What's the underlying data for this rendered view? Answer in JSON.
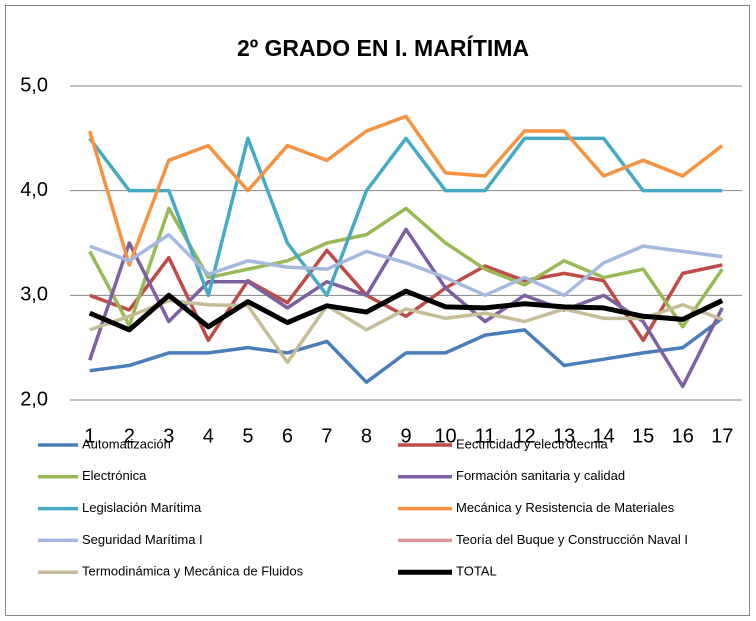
{
  "chart_data": {
    "type": "line",
    "title": "2º GRADO EN I. MARÍTIMA",
    "categories": [
      "1",
      "2",
      "3",
      "4",
      "5",
      "6",
      "7",
      "8",
      "9",
      "10",
      "11",
      "12",
      "13",
      "14",
      "15",
      "16",
      "17"
    ],
    "ylim": [
      2,
      5
    ],
    "yticks": [
      {
        "value": 2,
        "label": "2,0"
      },
      {
        "value": 3,
        "label": "3,0"
      },
      {
        "value": 4,
        "label": "4,0"
      },
      {
        "value": 5,
        "label": "5,0"
      }
    ],
    "grid": true,
    "legend": "bottom",
    "series": [
      {
        "name": "Automatización",
        "color": "#4a7ebb",
        "values": [
          2.28,
          2.33,
          2.45,
          2.45,
          2.5,
          2.45,
          2.56,
          2.17,
          2.45,
          2.45,
          2.62,
          2.67,
          2.33,
          2.39,
          2.45,
          2.5,
          2.78
        ]
      },
      {
        "name": "Eectricidad y electrotecnia",
        "color": "#be4b48",
        "values": [
          3.0,
          2.86,
          3.36,
          2.57,
          3.14,
          2.93,
          3.43,
          3.0,
          2.8,
          3.07,
          3.28,
          3.14,
          3.21,
          3.14,
          2.57,
          3.21,
          3.29
        ]
      },
      {
        "name": "Electrónica",
        "color": "#98b954",
        "values": [
          3.42,
          2.71,
          3.83,
          3.17,
          3.25,
          3.33,
          3.5,
          3.58,
          3.83,
          3.5,
          3.25,
          3.1,
          3.33,
          3.17,
          3.25,
          2.7,
          3.25
        ]
      },
      {
        "name": "Formación sanitaria y calidad",
        "color": "#7d60a0",
        "values": [
          2.38,
          3.5,
          2.75,
          3.13,
          3.13,
          2.88,
          3.13,
          3.0,
          3.63,
          3.07,
          2.75,
          3.0,
          2.86,
          3.0,
          2.75,
          2.13,
          2.88
        ]
      },
      {
        "name": "Legislación Marítima",
        "color": "#46aac5",
        "values": [
          4.5,
          4.0,
          4.0,
          3.0,
          4.5,
          3.5,
          3.0,
          4.0,
          4.5,
          4.0,
          4.0,
          4.5,
          4.5,
          4.5,
          4.0,
          4.0,
          4.0
        ]
      },
      {
        "name": "Mecánica y Resistencia de Materiales",
        "color": "#f69240",
        "values": [
          4.57,
          3.29,
          4.29,
          4.43,
          4.0,
          4.43,
          4.29,
          4.57,
          4.71,
          4.17,
          4.14,
          4.57,
          4.57,
          4.14,
          4.29,
          4.14,
          4.43
        ]
      },
      {
        "name": "Seguridad Marítima I",
        "color": "#a5b9e0",
        "values": [
          3.47,
          3.33,
          3.58,
          3.2,
          3.33,
          3.27,
          3.25,
          3.42,
          3.31,
          3.17,
          3.0,
          3.17,
          3.0,
          3.31,
          3.47,
          3.42,
          3.37
        ]
      },
      {
        "name": "Teoría del Buque y Construcción Naval I",
        "color": "#d99694",
        "values": [
          null,
          null,
          null,
          null,
          null,
          null,
          null,
          null,
          null,
          null,
          null,
          null,
          null,
          null,
          null,
          null,
          null
        ]
      },
      {
        "name": "Termodinámica y Mecánica de Fluidos",
        "color": "#c4bd97",
        "values": [
          2.67,
          2.8,
          2.95,
          2.91,
          2.9,
          2.36,
          2.9,
          2.67,
          2.87,
          2.78,
          2.83,
          2.75,
          2.87,
          2.78,
          2.78,
          2.91,
          2.77
        ]
      },
      {
        "name": "TOTAL",
        "color": "#000000",
        "values": [
          2.83,
          2.67,
          3.0,
          2.7,
          2.94,
          2.74,
          2.9,
          2.84,
          3.04,
          2.89,
          2.88,
          2.92,
          2.89,
          2.88,
          2.8,
          2.77,
          2.95
        ]
      }
    ]
  }
}
